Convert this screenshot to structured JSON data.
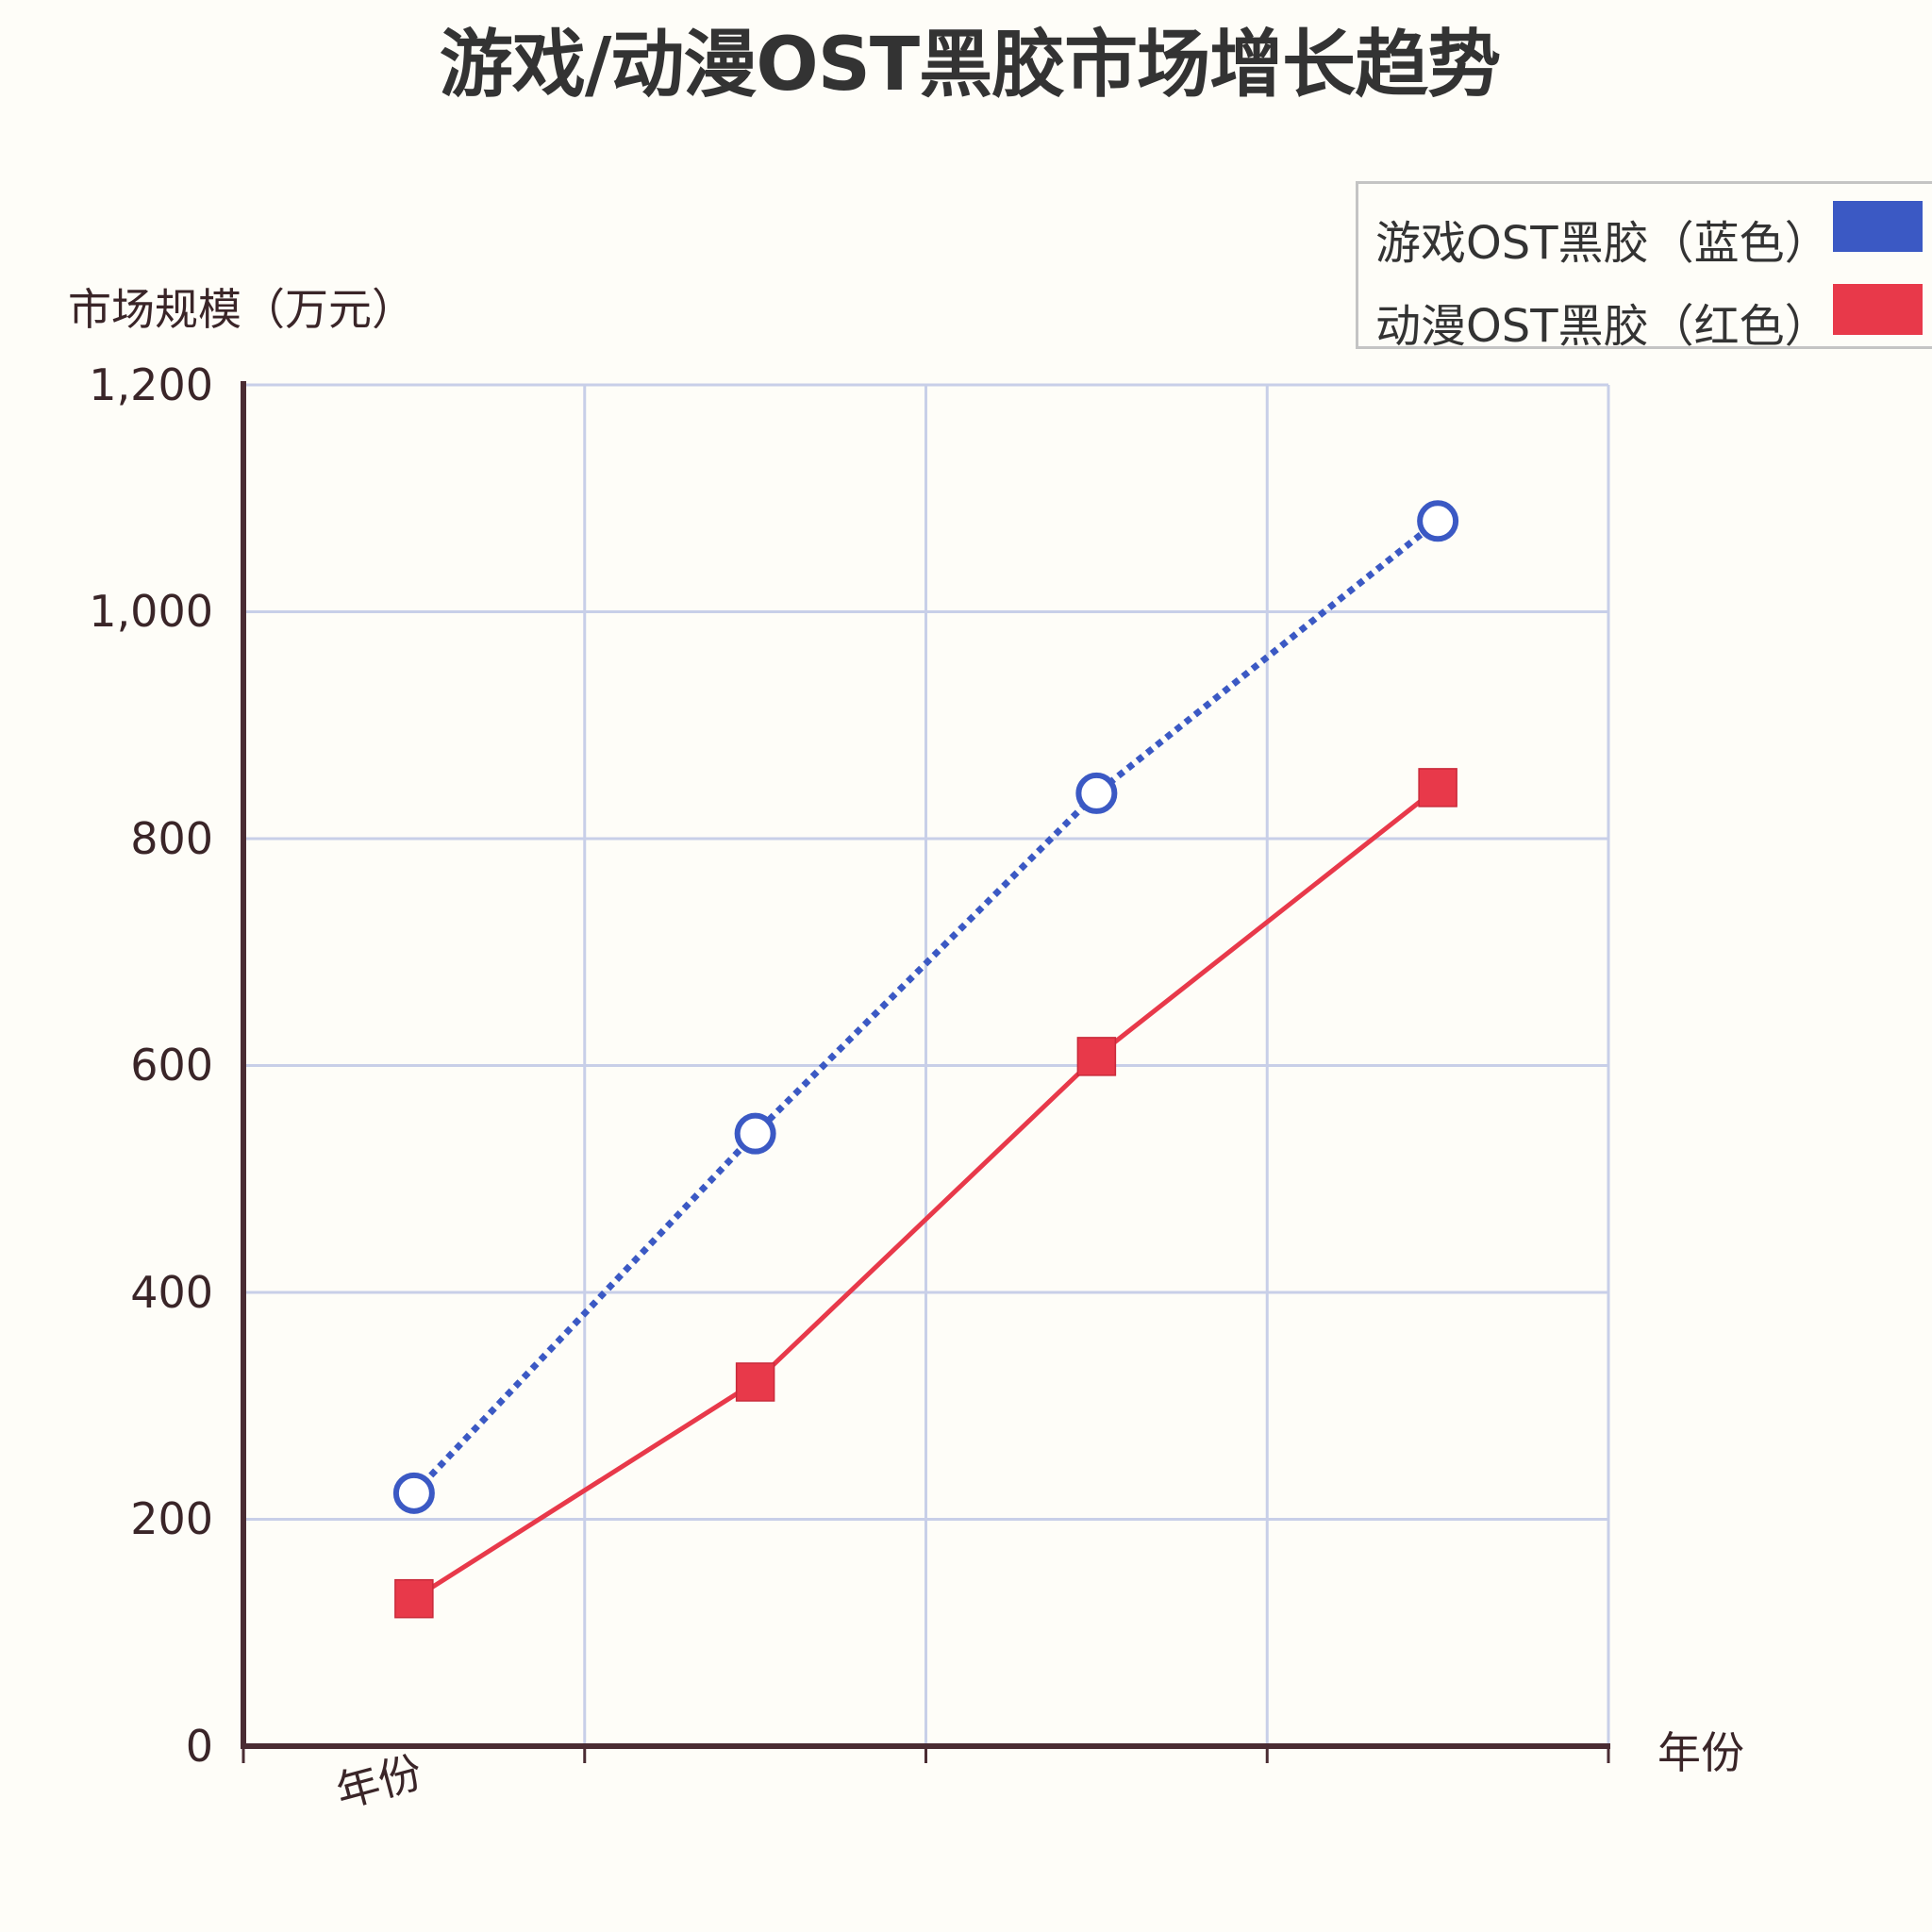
{
  "title": "游戏/动漫OST黑胶市场增长趋势",
  "legend": {
    "items": [
      {
        "label": "游戏OST黑胶（蓝色）",
        "color": "#3b59c4"
      },
      {
        "label": "动漫OST黑胶（红色）",
        "color": "#e8394a"
      }
    ]
  },
  "axes": {
    "y_label": "市场规模（万元）",
    "x_label": "年份",
    "x_label_rotated": "年份",
    "y_ticks": [
      "1,200",
      "1,000",
      "800",
      "600",
      "400",
      "200",
      "0"
    ]
  },
  "colors": {
    "background": "#fefdf8",
    "grid": "#c8cfe8",
    "axis": "#4a2c33",
    "blue": "#3b59c4",
    "red": "#e8394a"
  },
  "chart_data": {
    "type": "line",
    "title": "游戏/动漫OST黑胶市场增长趋势",
    "xlabel": "年份",
    "ylabel": "市场规模（万元）",
    "categories": [
      "",
      "",
      "",
      ""
    ],
    "series": [
      {
        "name": "游戏OST黑胶（蓝色）",
        "color": "#3b59c4",
        "style": "dotted",
        "marker": "open-circle",
        "values": [
          223,
          540,
          840,
          1080
        ]
      },
      {
        "name": "动漫OST黑胶（红色）",
        "color": "#e8394a",
        "style": "solid",
        "marker": "square",
        "values": [
          130,
          321,
          608,
          845
        ]
      }
    ],
    "ylim": [
      0,
      1200
    ],
    "yticks": [
      0,
      200,
      400,
      600,
      800,
      1000,
      1200
    ],
    "grid": true,
    "legend_position": "top-right"
  }
}
